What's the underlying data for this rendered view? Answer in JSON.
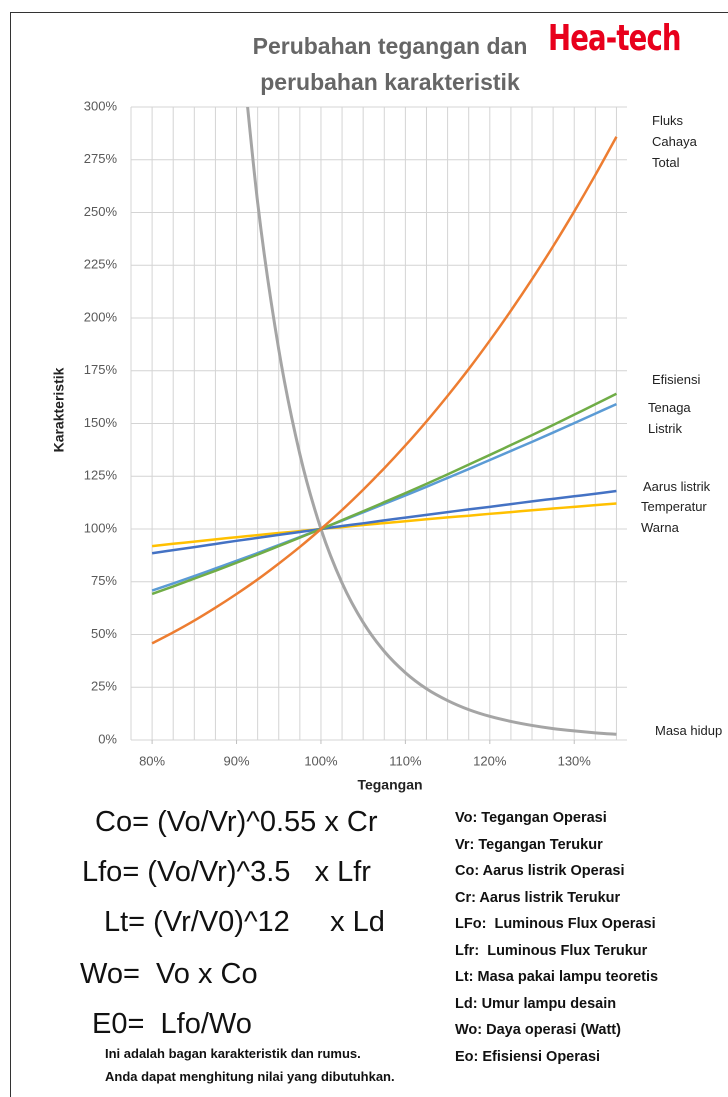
{
  "chart_data": {
    "type": "line",
    "title": "Perubahan tegangan dan\nperubahan karakteristik",
    "brand": "Hea-tech",
    "xlabel": "Tegangan",
    "ylabel": "Karakteristik",
    "x": [
      80,
      82.5,
      85,
      87.5,
      90,
      92.5,
      95,
      97.5,
      100,
      102.5,
      105,
      107.5,
      110,
      112.5,
      115,
      117.5,
      120,
      122.5,
      125,
      127.5,
      130,
      132.5,
      135
    ],
    "series": [
      {
        "name": "Fluks\nCahaya\nTotal",
        "color": "#ed7d31",
        "values": [
          45.8,
          51.0,
          56.6,
          62.7,
          69.2,
          76.1,
          83.6,
          91.5,
          100,
          109.0,
          118.6,
          128.8,
          139.6,
          151.0,
          163.1,
          175.8,
          189.3,
          203.5,
          218.4,
          234.0,
          250.5,
          267.8,
          285.9
        ]
      },
      {
        "name": "Efisiensi",
        "color": "#70ad47",
        "values": [
          69.2,
          72.8,
          76.5,
          80.2,
          84.0,
          87.9,
          91.9,
          95.9,
          100,
          104.2,
          108.4,
          112.7,
          117.0,
          121.4,
          125.9,
          130.5,
          135.1,
          139.8,
          144.5,
          149.3,
          154.2,
          159.1,
          164.1
        ]
      },
      {
        "name": "Tenaga\nListrik",
        "color": "#5b9bd5",
        "values": [
          70.8,
          74.2,
          77.7,
          81.3,
          84.9,
          88.6,
          92.4,
          96.2,
          100,
          103.9,
          107.9,
          111.9,
          115.9,
          120.0,
          124.2,
          128.4,
          132.7,
          137.0,
          141.3,
          145.7,
          150.2,
          154.7,
          159.2
        ]
      },
      {
        "name": "Aarus listrik",
        "color": "#4472c4",
        "values": [
          88.5,
          90.0,
          91.4,
          92.9,
          94.4,
          95.8,
          97.2,
          98.6,
          100,
          101.4,
          102.7,
          104.1,
          105.4,
          106.7,
          108.0,
          109.3,
          110.5,
          111.8,
          113.1,
          114.3,
          115.5,
          116.7,
          118.0
        ]
      },
      {
        "name": "Temperatur\nWarna",
        "color": "#ffc000",
        "values": [
          91.9,
          93.0,
          94.0,
          95.1,
          96.1,
          97.1,
          98.1,
          99.0,
          100,
          100.9,
          101.9,
          102.8,
          103.7,
          104.6,
          105.5,
          106.3,
          107.2,
          108.0,
          108.9,
          109.7,
          110.5,
          111.3,
          112.1
        ]
      },
      {
        "name": "Masa hidup",
        "color": "#a5a5a5",
        "values": [
          null,
          null,
          null,
          null,
          354.0,
          254.8,
          185.1,
          135.5,
          100,
          74.4,
          55.7,
          42.0,
          31.9,
          24.3,
          18.7,
          14.4,
          11.2,
          8.8,
          6.9,
          5.4,
          4.3,
          3.4,
          2.7
        ]
      }
    ],
    "xlim": [
      77.5,
      136.25
    ],
    "ylim": [
      0,
      300
    ],
    "xticks": [
      {
        "value": 80,
        "label": "80%"
      },
      {
        "value": 90,
        "label": "90%"
      },
      {
        "value": 100,
        "label": "100%"
      },
      {
        "value": 110,
        "label": "110%"
      },
      {
        "value": 120,
        "label": "120%"
      },
      {
        "value": 130,
        "label": "130%"
      }
    ],
    "yticks": [
      {
        "value": 0,
        "label": "0%"
      },
      {
        "value": 25,
        "label": "25%"
      },
      {
        "value": 50,
        "label": "50%"
      },
      {
        "value": 75,
        "label": "75%"
      },
      {
        "value": 100,
        "label": "100%"
      },
      {
        "value": 125,
        "label": "125%"
      },
      {
        "value": 150,
        "label": "150%"
      },
      {
        "value": 175,
        "label": "175%"
      },
      {
        "value": 200,
        "label": "200%"
      },
      {
        "value": 225,
        "label": "225%"
      },
      {
        "value": 250,
        "label": "250%"
      },
      {
        "value": 275,
        "label": "275%"
      },
      {
        "value": 300,
        "label": "300%"
      }
    ],
    "grid": true,
    "minor_grid_step": 2.5
  },
  "formulas": [
    "Co= (Vo/Vr)^0.55 x Cr",
    "Lfo= (Vo/Vr)^3.5   x Lfr",
    "Lt= (Vr/V0)^12     x Ld",
    "Wo=  Vo x Co",
    "E0=  Lfo/Wo"
  ],
  "definitions": [
    "Vo: Tegangan Operasi",
    "Vr: Tegangan Terukur",
    "Co: Aarus listrik Operasi",
    "Cr: Aarus listrik Terukur",
    "LFo:  Luminous Flux Operasi",
    "Lfr:  Luminous Flux Terukur",
    "Lt: Masa pakai lampu teoretis",
    "Ld: Umur lampu desain",
    "Wo: Daya operasi (Watt)",
    "Eo: Efisiensi Operasi"
  ],
  "note": [
    "Ini adalah bagan karakteristik dan rumus.",
    "Anda dapat menghitung nilai yang dibutuhkan."
  ]
}
